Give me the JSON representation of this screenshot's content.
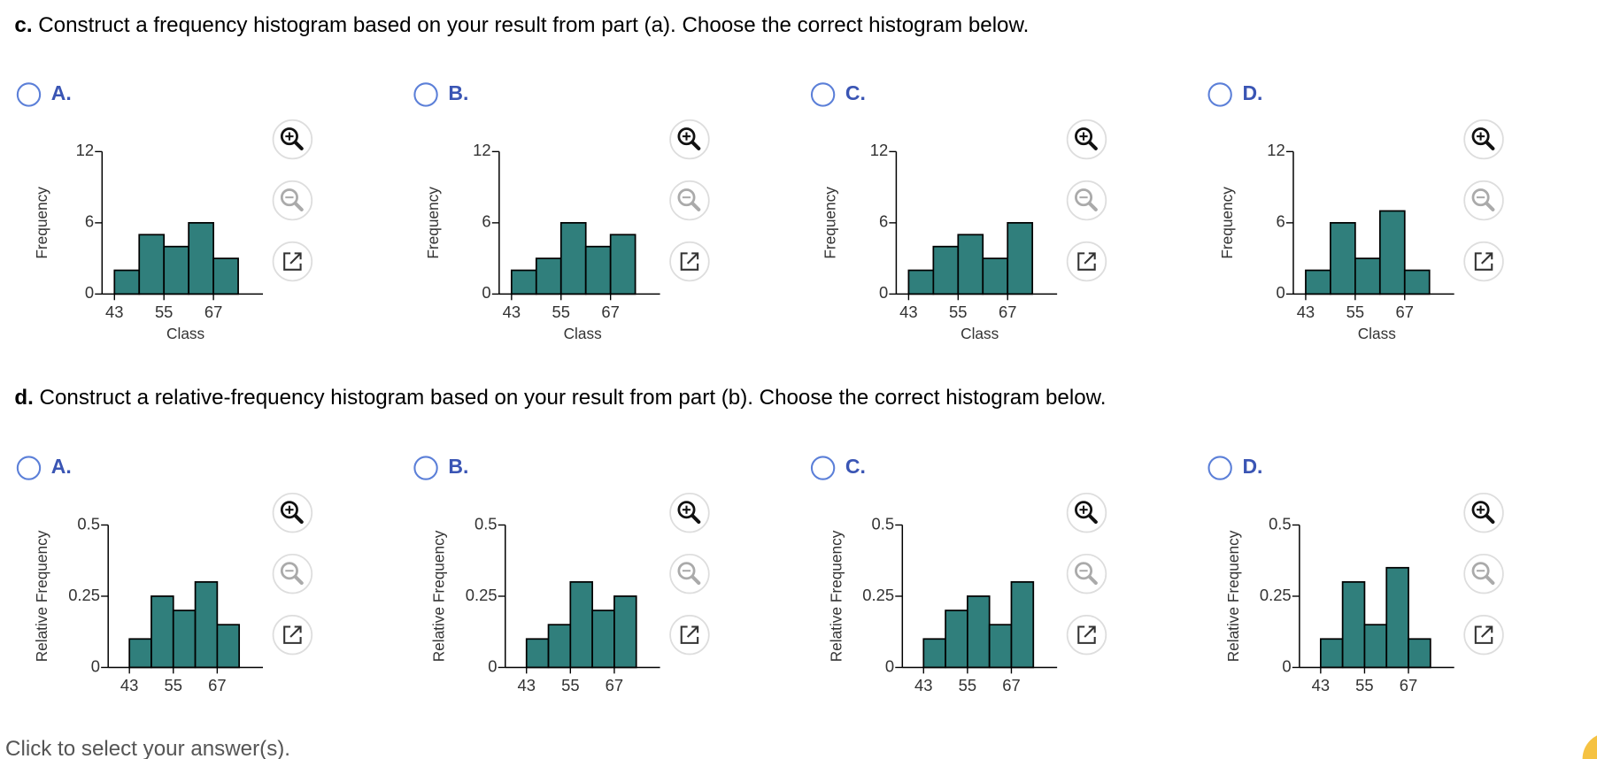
{
  "part_c": {
    "label": "c.",
    "prompt": "Construct a frequency histogram based on your result from part (a). Choose the correct histogram below.",
    "options": [
      "A.",
      "B.",
      "C.",
      "D."
    ]
  },
  "part_d": {
    "label": "d.",
    "prompt": "Construct a relative-frequency histogram based on your result from part (b). Choose the correct histogram below.",
    "options": [
      "A.",
      "B.",
      "C.",
      "D."
    ]
  },
  "footer": "Click to select your answer(s).",
  "chart_data": [
    {
      "type": "histogram",
      "x_label": "Class",
      "y_label": "Frequency",
      "bins": [
        43,
        49,
        55,
        61,
        67,
        73
      ],
      "values": [
        2,
        5,
        4,
        6,
        3
      ],
      "color": "#307f7c",
      "xlim": [
        40,
        79
      ],
      "ylim": [
        0,
        12
      ],
      "xticks": [
        43,
        55,
        67
      ],
      "yticks": [
        0,
        6,
        12
      ]
    },
    {
      "type": "histogram",
      "x_label": "Class",
      "y_label": "Frequency",
      "bins": [
        43,
        49,
        55,
        61,
        67,
        73
      ],
      "values": [
        2,
        3,
        6,
        4,
        5
      ],
      "color": "#307f7c",
      "xlim": [
        40,
        79
      ],
      "ylim": [
        0,
        12
      ],
      "xticks": [
        43,
        55,
        67
      ],
      "yticks": [
        0,
        6,
        12
      ]
    },
    {
      "type": "histogram",
      "x_label": "Class",
      "y_label": "Frequency",
      "bins": [
        43,
        49,
        55,
        61,
        67,
        73
      ],
      "values": [
        2,
        4,
        5,
        3,
        6
      ],
      "color": "#307f7c",
      "xlim": [
        40,
        79
      ],
      "ylim": [
        0,
        12
      ],
      "xticks": [
        43,
        55,
        67
      ],
      "yticks": [
        0,
        6,
        12
      ]
    },
    {
      "type": "histogram",
      "x_label": "Class",
      "y_label": "Frequency",
      "bins": [
        43,
        49,
        55,
        61,
        67,
        73
      ],
      "values": [
        2,
        6,
        3,
        7,
        2
      ],
      "color": "#307f7c",
      "xlim": [
        40,
        79
      ],
      "ylim": [
        0,
        12
      ],
      "xticks": [
        43,
        55,
        67
      ],
      "yticks": [
        0,
        6,
        12
      ]
    },
    {
      "type": "histogram",
      "y_label": "Relative Frequency",
      "bins": [
        43,
        49,
        55,
        61,
        67,
        73
      ],
      "values": [
        0.1,
        0.25,
        0.2,
        0.3,
        0.15
      ],
      "color": "#307f7c",
      "xlim": [
        37.2,
        79.5
      ],
      "ylim": [
        0,
        0.5
      ],
      "xticks": [
        43,
        55,
        67
      ],
      "yticks": [
        0,
        0.25,
        0.5
      ]
    },
    {
      "type": "histogram",
      "y_label": "Relative Frequency",
      "bins": [
        43,
        49,
        55,
        61,
        67,
        73
      ],
      "values": [
        0.1,
        0.15,
        0.3,
        0.2,
        0.25
      ],
      "color": "#307f7c",
      "xlim": [
        37.2,
        79.5
      ],
      "ylim": [
        0,
        0.5
      ],
      "xticks": [
        43,
        55,
        67
      ],
      "yticks": [
        0,
        0.25,
        0.5
      ]
    },
    {
      "type": "histogram",
      "y_label": "Relative Frequency",
      "bins": [
        43,
        49,
        55,
        61,
        67,
        73
      ],
      "values": [
        0.1,
        0.2,
        0.25,
        0.15,
        0.3
      ],
      "color": "#307f7c",
      "xlim": [
        37.2,
        79.5
      ],
      "ylim": [
        0,
        0.5
      ],
      "xticks": [
        43,
        55,
        67
      ],
      "yticks": [
        0,
        0.25,
        0.5
      ]
    },
    {
      "type": "histogram",
      "y_label": "Relative Frequency",
      "bins": [
        43,
        49,
        55,
        61,
        67,
        73
      ],
      "values": [
        0.1,
        0.3,
        0.15,
        0.35,
        0.1
      ],
      "color": "#307f7c",
      "xlim": [
        37.2,
        79.5
      ],
      "ylim": [
        0,
        0.5
      ],
      "xticks": [
        43,
        55,
        67
      ],
      "yticks": [
        0,
        0.25,
        0.5
      ]
    }
  ]
}
